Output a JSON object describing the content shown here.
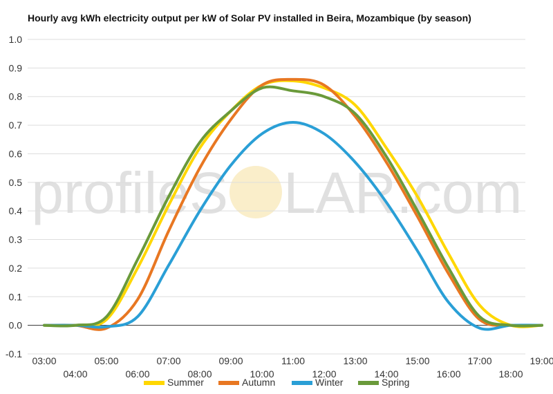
{
  "chart_data": {
    "type": "line",
    "title": "Hourly avg kWh electricity output per kW of Solar PV installed in Beira, Mozambique (by season)",
    "watermark": {
      "left": "profileS",
      "right": "LAR.com",
      "sun_color": "#f7e3a6"
    },
    "xlabel": "",
    "ylabel": "",
    "x_tick_labels": [
      "03:00",
      "04:00",
      "05:00",
      "06:00",
      "07:00",
      "08:00",
      "09:00",
      "10:00",
      "11:00",
      "12:00",
      "13:00",
      "14:00",
      "15:00",
      "16:00",
      "17:00",
      "18:00",
      "19:00"
    ],
    "x": [
      3,
      4,
      5,
      6,
      7,
      8,
      9,
      10,
      11,
      12,
      13,
      14,
      15,
      16,
      17,
      18,
      19
    ],
    "ylim": [
      -0.1,
      1.0
    ],
    "y_ticks": [
      "-0.1",
      "0.0",
      "0.1",
      "0.2",
      "0.3",
      "0.4",
      "0.5",
      "0.6",
      "0.7",
      "0.8",
      "0.9",
      "1.0"
    ],
    "grid": true,
    "legend_position": "bottom",
    "series": [
      {
        "name": "Summer",
        "color": "#ffd700",
        "values": [
          0.0,
          0.0,
          0.02,
          0.2,
          0.42,
          0.62,
          0.75,
          0.84,
          0.855,
          0.83,
          0.77,
          0.62,
          0.45,
          0.25,
          0.07,
          0.0,
          0.0
        ]
      },
      {
        "name": "Autumn",
        "color": "#e87722",
        "values": [
          0.0,
          0.0,
          -0.01,
          0.09,
          0.33,
          0.55,
          0.72,
          0.84,
          0.86,
          0.84,
          0.73,
          0.57,
          0.38,
          0.18,
          0.02,
          0.0,
          0.0
        ]
      },
      {
        "name": "Winter",
        "color": "#2a9fd6",
        "values": [
          0.0,
          0.0,
          -0.005,
          0.03,
          0.21,
          0.4,
          0.56,
          0.67,
          0.71,
          0.67,
          0.57,
          0.43,
          0.26,
          0.08,
          -0.01,
          0.0,
          0.0
        ]
      },
      {
        "name": "Spring",
        "color": "#6a9a3a",
        "values": [
          0.0,
          0.0,
          0.03,
          0.23,
          0.45,
          0.64,
          0.75,
          0.83,
          0.82,
          0.8,
          0.74,
          0.59,
          0.4,
          0.2,
          0.03,
          0.0,
          0.0
        ]
      }
    ]
  }
}
